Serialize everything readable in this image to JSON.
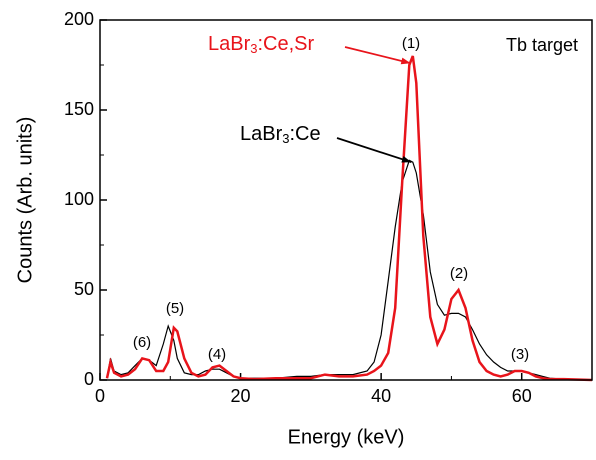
{
  "chart_data": {
    "type": "line",
    "xlabel": "Energy (keV)",
    "ylabel": "Counts (Arb. units)",
    "annotations": [
      "(1)",
      "(2)",
      "(3)",
      "(4)",
      "(5)",
      "(6)",
      "Tb target"
    ],
    "x": [
      1,
      1.5,
      2,
      3,
      4,
      5,
      6,
      7,
      8,
      9,
      9.7,
      10.5,
      11,
      12,
      13,
      14,
      15,
      16,
      17,
      18,
      19,
      20,
      22,
      25,
      28,
      30,
      32,
      34,
      36,
      38,
      39,
      40,
      41,
      42,
      43,
      44,
      44.5,
      45,
      46,
      47,
      48,
      49,
      50,
      51,
      52,
      53,
      54,
      55,
      56,
      57,
      58,
      59,
      60,
      61,
      62,
      63,
      64,
      66,
      70
    ],
    "series": [
      {
        "name": "LaBr3:Ce",
        "color": "#000000",
        "values": [
          1,
          12,
          5,
          3,
          4,
          8,
          12,
          11,
          8,
          20,
          30,
          22,
          12,
          4,
          3,
          3,
          5,
          6,
          6,
          4,
          2,
          1,
          1,
          1,
          2,
          2,
          3,
          3,
          3,
          5,
          10,
          25,
          55,
          85,
          110,
          122,
          121,
          115,
          92,
          60,
          42,
          36,
          37,
          37,
          35,
          28,
          20,
          14,
          10,
          7,
          5,
          5,
          5,
          4,
          3,
          2,
          1,
          0.5,
          0
        ]
      },
      {
        "name": "LaBr3:Ce,Sr",
        "color": "#e8141b",
        "values": [
          1,
          10,
          4,
          2,
          3,
          6,
          12,
          11,
          5,
          5,
          10,
          29,
          27,
          12,
          4,
          2,
          3,
          7,
          8,
          5,
          2,
          1,
          0.5,
          1,
          1,
          1,
          3,
          2,
          2,
          3,
          5,
          8,
          15,
          40,
          110,
          175,
          180,
          165,
          80,
          35,
          20,
          28,
          45,
          50,
          40,
          22,
          10,
          5,
          3,
          2,
          3,
          5,
          5,
          4,
          2,
          1,
          0.5,
          0.5,
          0
        ]
      }
    ],
    "xlim": [
      0,
      70
    ],
    "xticks": [
      0,
      20,
      40,
      60
    ],
    "ylim": [
      0,
      200
    ],
    "yticks": [
      0,
      50,
      100,
      150,
      200
    ]
  }
}
